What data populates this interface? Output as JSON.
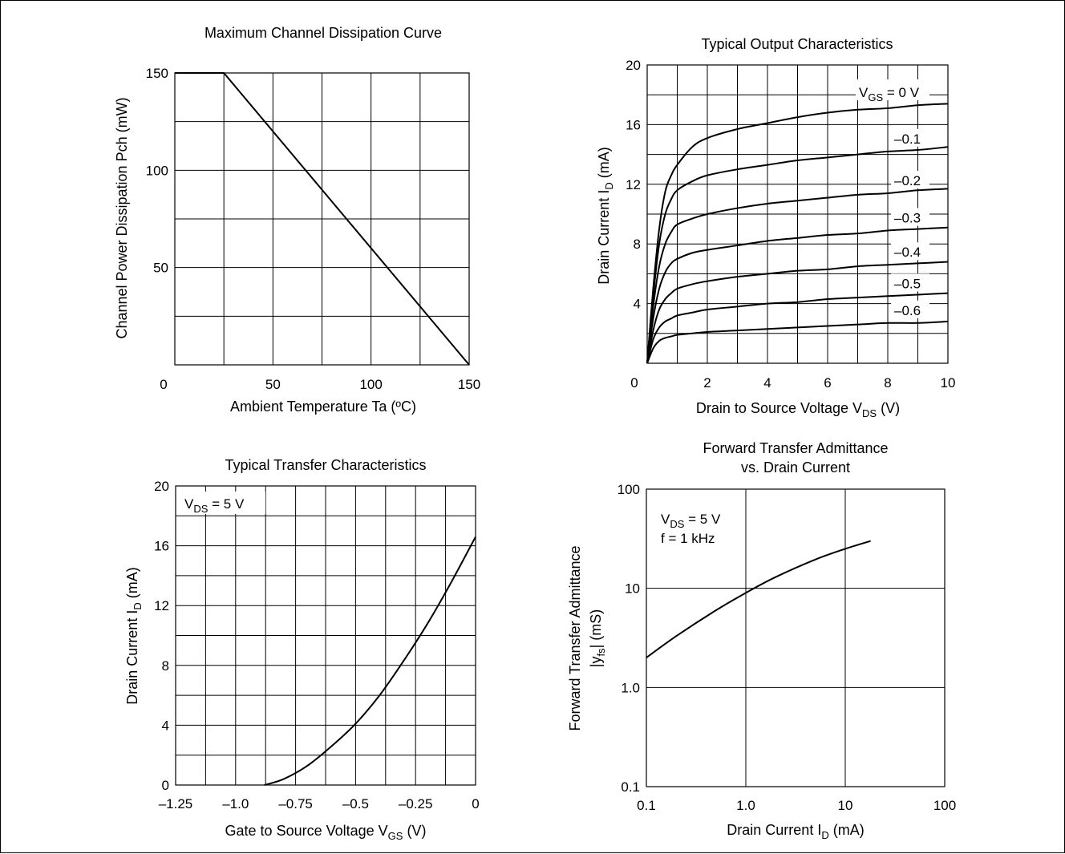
{
  "chart_data": [
    {
      "id": "dissipation",
      "type": "line",
      "title": "Maximum Channel Dissipation Curve",
      "xlabel": "Ambient Temperature  Ta  (ºC)",
      "ylabel": "Channel Power Dissipation  Pch  (mW)",
      "xlim": [
        0,
        150
      ],
      "ylim": [
        0,
        150
      ],
      "x_ticks": [
        0,
        50,
        100,
        150
      ],
      "x_tick_labels": [
        "0",
        "50",
        "100",
        "150"
      ],
      "y_ticks": [
        50,
        100,
        150
      ],
      "y_tick_labels": [
        "50",
        "100",
        "150"
      ],
      "grid": true,
      "series": [
        {
          "x": [
            0,
            25,
            150
          ],
          "y": [
            150,
            150,
            0
          ]
        }
      ]
    },
    {
      "id": "output",
      "type": "line",
      "title": "Typical Output Characteristics",
      "xlabel_main": "Drain to Source Voltage  V",
      "xlabel_sub": "DS",
      "xlabel_tail": "  (V)",
      "ylabel_main": "Drain Current  I",
      "ylabel_sub": "D",
      "ylabel_tail": "  (mA)",
      "xlim": [
        0,
        10
      ],
      "ylim": [
        0,
        20
      ],
      "x_ticks": [
        0,
        2,
        4,
        6,
        8,
        10
      ],
      "x_tick_labels": [
        "0",
        "2",
        "4",
        "6",
        "8",
        "10"
      ],
      "y_ticks": [
        4,
        8,
        12,
        16,
        20
      ],
      "y_tick_labels": [
        "4",
        "8",
        "12",
        "16",
        "20"
      ],
      "grid": true,
      "series": [
        {
          "label": "0 V",
          "x": [
            0,
            0.2,
            0.4,
            0.6,
            0.8,
            1.0,
            1.5,
            2,
            3,
            4,
            5,
            6,
            7,
            8,
            9,
            10
          ],
          "y": [
            0,
            5,
            9,
            11.5,
            12.6,
            13.3,
            14.5,
            15.1,
            15.7,
            16.1,
            16.5,
            16.8,
            17.0,
            17.1,
            17.3,
            17.4
          ]
        },
        {
          "label": "–0.1",
          "x": [
            0,
            0.2,
            0.4,
            0.6,
            0.8,
            1.0,
            1.5,
            2,
            3,
            4,
            5,
            6,
            7,
            8,
            9,
            10
          ],
          "y": [
            0,
            4.5,
            8,
            10,
            11,
            11.6,
            12.2,
            12.6,
            13.0,
            13.3,
            13.6,
            13.8,
            14.0,
            14.2,
            14.3,
            14.5
          ]
        },
        {
          "label": "–0.2",
          "x": [
            0,
            0.2,
            0.4,
            0.6,
            0.8,
            1.0,
            1.5,
            2,
            3,
            4,
            5,
            6,
            7,
            8,
            9,
            10
          ],
          "y": [
            0,
            3.8,
            6.5,
            8.0,
            8.8,
            9.3,
            9.7,
            10.0,
            10.4,
            10.7,
            10.9,
            11.1,
            11.3,
            11.4,
            11.6,
            11.7
          ]
        },
        {
          "label": "–0.3",
          "x": [
            0,
            0.2,
            0.4,
            0.6,
            0.8,
            1.0,
            1.5,
            2,
            3,
            4,
            5,
            6,
            7,
            8,
            9,
            10
          ],
          "y": [
            0,
            3.0,
            5.0,
            6.1,
            6.7,
            7.0,
            7.4,
            7.6,
            7.9,
            8.2,
            8.4,
            8.6,
            8.7,
            8.9,
            9.0,
            9.1
          ]
        },
        {
          "label": "–0.4",
          "x": [
            0,
            0.2,
            0.4,
            0.6,
            0.8,
            1.0,
            1.5,
            2,
            3,
            4,
            5,
            6,
            7,
            8,
            9,
            10
          ],
          "y": [
            0,
            2.2,
            3.6,
            4.3,
            4.7,
            5.0,
            5.3,
            5.5,
            5.8,
            6.0,
            6.2,
            6.3,
            6.5,
            6.6,
            6.7,
            6.8
          ]
        },
        {
          "label": "–0.5",
          "x": [
            0,
            0.2,
            0.4,
            0.6,
            0.8,
            1.0,
            1.5,
            2,
            3,
            4,
            5,
            6,
            7,
            8,
            9,
            10
          ],
          "y": [
            0,
            1.6,
            2.4,
            2.8,
            3.0,
            3.2,
            3.4,
            3.6,
            3.8,
            4.0,
            4.1,
            4.3,
            4.4,
            4.5,
            4.6,
            4.7
          ]
        },
        {
          "label": "–0.6",
          "x": [
            0,
            0.2,
            0.4,
            0.6,
            0.8,
            1.0,
            1.5,
            2,
            3,
            4,
            5,
            6,
            7,
            8,
            9,
            10
          ],
          "y": [
            0,
            1.0,
            1.5,
            1.7,
            1.8,
            1.9,
            2.0,
            2.1,
            2.2,
            2.3,
            2.4,
            2.5,
            2.6,
            2.7,
            2.7,
            2.8
          ]
        }
      ],
      "curve_label_vgs_main": "V",
      "curve_label_vgs_sub": "GS",
      "curve_label_vgs_tail": " = 0 V",
      "curve_labels": [
        "–0.1",
        "–0.2",
        "–0.3",
        "–0.4",
        "–0.5",
        "–0.6"
      ]
    },
    {
      "id": "transfer",
      "type": "line",
      "title": "Typical Transfer Characteristics",
      "xlabel_main": "Gate to Source Voltage  V",
      "xlabel_sub": "GS",
      "xlabel_tail": "  (V)",
      "ylabel_main": "Drain Current  I",
      "ylabel_sub": "D",
      "ylabel_tail": "  (mA)",
      "xlim": [
        -1.25,
        0
      ],
      "ylim": [
        0,
        20
      ],
      "x_ticks": [
        -1.25,
        -1.0,
        -0.75,
        -0.5,
        -0.25,
        0
      ],
      "x_tick_labels": [
        "–1.25",
        "–1.0",
        "–0.75",
        "–0.5",
        "–0.25",
        "0"
      ],
      "y_ticks": [
        0,
        4,
        8,
        12,
        16,
        20
      ],
      "y_tick_labels": [
        "0",
        "4",
        "8",
        "12",
        "16",
        "20"
      ],
      "grid": true,
      "annotation_main": "V",
      "annotation_sub": "DS",
      "annotation_tail": " = 5 V",
      "series": [
        {
          "x": [
            -0.88,
            -0.8,
            -0.7,
            -0.6,
            -0.5,
            -0.4,
            -0.3,
            -0.2,
            -0.1,
            0
          ],
          "y": [
            0,
            0.4,
            1.3,
            2.6,
            4.1,
            6.0,
            8.3,
            10.8,
            13.6,
            16.6
          ]
        }
      ]
    },
    {
      "id": "admittance",
      "type": "line",
      "title_line1": "Forward Transfer Admittance",
      "title_line2": "vs. Drain Current",
      "xlabel_main": "Drain Current  I",
      "xlabel_sub": "D",
      "xlabel_tail": "  (mA)",
      "ylabel_line1": "Forward Transfer Admittance",
      "ylabel_line2_main": "|y",
      "ylabel_line2_sub": "fs",
      "ylabel_line2_tail": "|  (mS)",
      "xscale": "log",
      "yscale": "log",
      "xlim": [
        0.1,
        100
      ],
      "ylim": [
        0.1,
        100
      ],
      "x_ticks": [
        0.1,
        1,
        10,
        100
      ],
      "x_tick_labels": [
        "0.1",
        "1.0",
        "10",
        "100"
      ],
      "y_ticks": [
        0.1,
        1,
        10,
        100
      ],
      "y_tick_labels": [
        "0.1",
        "1.0",
        "10",
        "100"
      ],
      "grid": true,
      "annotation1_main": "V",
      "annotation1_sub": "DS",
      "annotation1_tail": " = 5 V",
      "annotation2": "f = 1 kHz",
      "series": [
        {
          "x": [
            0.1,
            0.2,
            0.5,
            1.0,
            2.0,
            5.0,
            10,
            18
          ],
          "y": [
            2.0,
            3.3,
            6.0,
            9.0,
            13.0,
            19.5,
            25,
            30
          ]
        }
      ]
    }
  ]
}
